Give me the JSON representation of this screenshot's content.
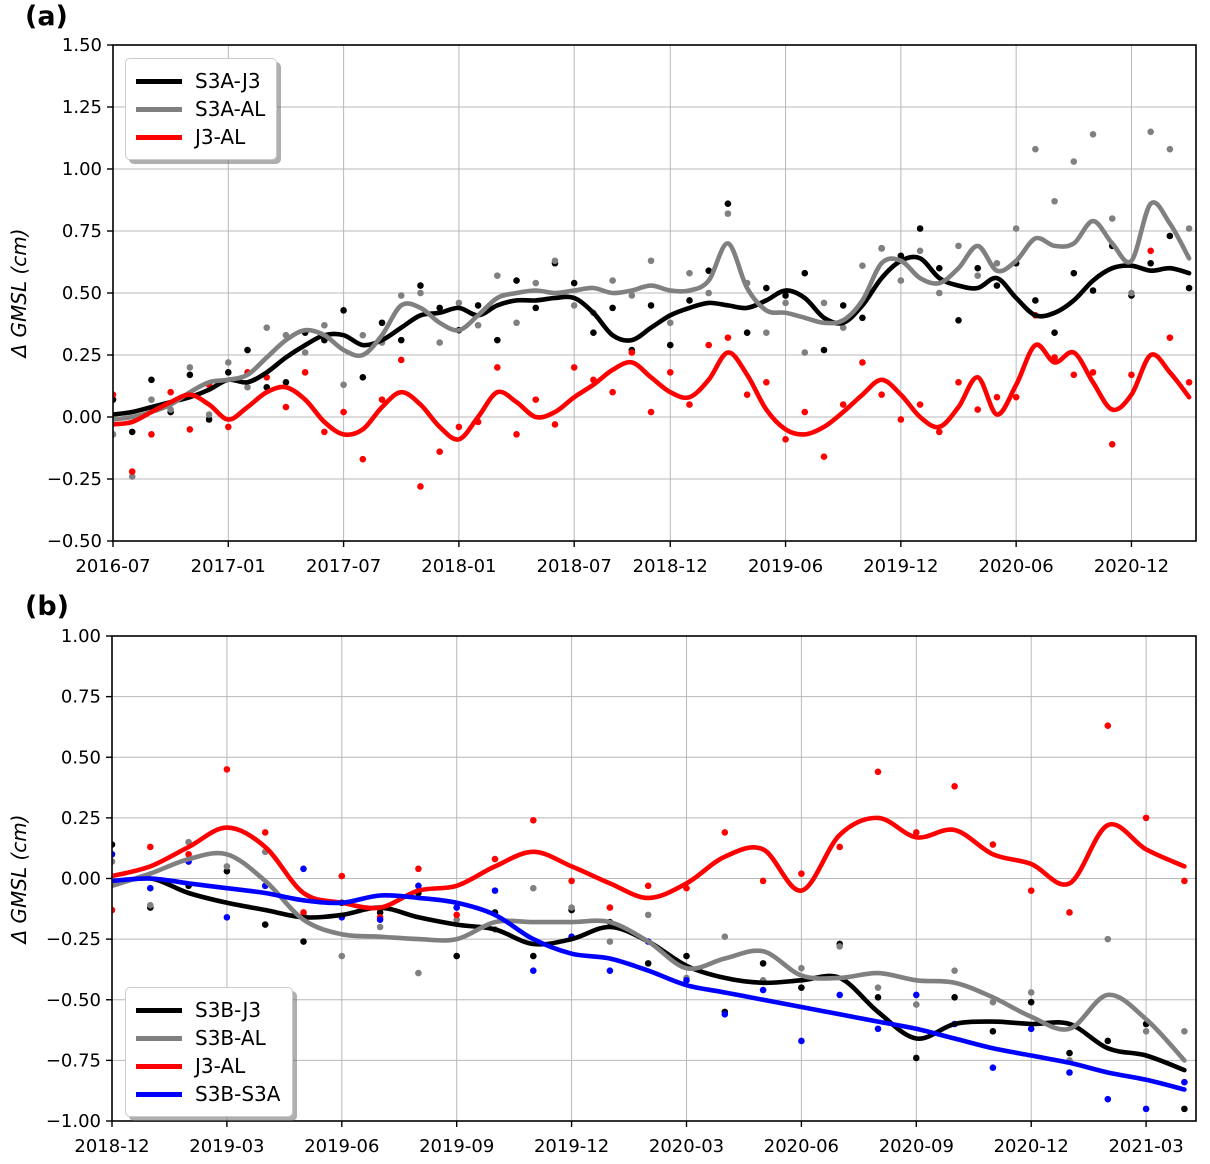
{
  "figure": {
    "panels": [
      {
        "label": "(a)",
        "ylabel": "Δ GMSL (cm)"
      },
      {
        "label": "(b)",
        "ylabel": "Δ GMSL (cm)"
      }
    ]
  },
  "chart_data": [
    {
      "type": "line",
      "panel": "a",
      "title": "(a)",
      "ylabel": "Δ GMSL (cm)",
      "ylim": [
        -0.5,
        1.5
      ],
      "grid": true,
      "legend_position": "upper-left",
      "y_tick_values": [
        1.5,
        1.25,
        1.0,
        0.75,
        0.5,
        0.25,
        0.0,
        -0.25,
        -0.5
      ],
      "y_tick_labels": [
        "1.50",
        "1.25",
        "1.00",
        "0.75",
        "0.50",
        "0.25",
        "0.00",
        "−0.25",
        "−0.50"
      ],
      "x_start": "2016-07",
      "x_tick_labels": [
        "2016-07",
        "2017-01",
        "2017-07",
        "2018-01",
        "2018-07",
        "2018-12",
        "2019-06",
        "2019-12",
        "2020-06",
        "2020-12"
      ],
      "x_monthly_from": "2016-07",
      "x_monthly_to": "2021-03",
      "series": [
        {
          "name": "S3A-J3",
          "color": "#000000",
          "line": [
            0.01,
            0.02,
            0.04,
            0.06,
            0.08,
            0.11,
            0.15,
            0.14,
            0.18,
            0.24,
            0.29,
            0.33,
            0.33,
            0.29,
            0.31,
            0.36,
            0.41,
            0.42,
            0.44,
            0.41,
            0.45,
            0.47,
            0.47,
            0.48,
            0.48,
            0.42,
            0.33,
            0.31,
            0.36,
            0.41,
            0.44,
            0.46,
            0.45,
            0.44,
            0.47,
            0.51,
            0.48,
            0.4,
            0.38,
            0.45,
            0.56,
            0.63,
            0.64,
            0.56,
            0.53,
            0.52,
            0.56,
            0.48,
            0.41,
            0.42,
            0.47,
            0.55,
            0.6,
            0.61,
            0.59,
            0.6,
            0.58
          ],
          "scatter": [
            0.07,
            -0.06,
            0.15,
            0.02,
            0.17,
            -0.01,
            0.18,
            0.27,
            0.12,
            0.14,
            0.34,
            0.31,
            0.43,
            0.16,
            0.38,
            0.31,
            0.53,
            0.44,
            0.35,
            0.45,
            0.31,
            0.55,
            0.44,
            0.62,
            0.54,
            0.34,
            0.44,
            0.27,
            0.45,
            0.29,
            0.47,
            0.59,
            0.86,
            0.34,
            0.52,
            0.49,
            0.58,
            0.27,
            0.45,
            0.4,
            0.68,
            0.65,
            0.76,
            0.6,
            0.39,
            0.6,
            0.53,
            0.62,
            0.47,
            0.34,
            0.58,
            0.51,
            0.69,
            0.49,
            0.62,
            0.73,
            0.52
          ]
        },
        {
          "name": "S3A-AL",
          "color": "#808080",
          "line": [
            -0.01,
            0.0,
            0.02,
            0.05,
            0.1,
            0.14,
            0.15,
            0.17,
            0.24,
            0.31,
            0.35,
            0.33,
            0.27,
            0.25,
            0.33,
            0.45,
            0.44,
            0.38,
            0.35,
            0.41,
            0.48,
            0.5,
            0.51,
            0.5,
            0.51,
            0.52,
            0.5,
            0.51,
            0.53,
            0.51,
            0.51,
            0.55,
            0.7,
            0.52,
            0.43,
            0.42,
            0.4,
            0.38,
            0.39,
            0.47,
            0.62,
            0.63,
            0.56,
            0.54,
            0.6,
            0.69,
            0.59,
            0.63,
            0.72,
            0.69,
            0.7,
            0.79,
            0.7,
            0.63,
            0.86,
            0.78,
            0.64
          ],
          "scatter": [
            -0.07,
            -0.24,
            0.07,
            0.03,
            0.2,
            0.01,
            0.22,
            0.12,
            0.36,
            0.33,
            0.26,
            0.37,
            0.13,
            0.33,
            0.3,
            0.49,
            0.5,
            0.3,
            0.46,
            0.37,
            0.57,
            0.38,
            0.54,
            0.63,
            0.45,
            0.42,
            0.55,
            0.49,
            0.63,
            0.38,
            0.58,
            0.5,
            0.82,
            0.54,
            0.34,
            0.46,
            0.26,
            0.46,
            0.36,
            0.61,
            0.68,
            0.55,
            0.67,
            0.5,
            0.69,
            0.57,
            0.62,
            0.76,
            1.08,
            0.87,
            1.03,
            1.14,
            0.8,
            0.5,
            1.15,
            1.08,
            0.76
          ]
        },
        {
          "name": "J3-AL",
          "color": "#ff0000",
          "line": [
            -0.03,
            -0.02,
            0.02,
            0.06,
            0.09,
            0.05,
            -0.01,
            0.04,
            0.1,
            0.12,
            0.07,
            -0.02,
            -0.07,
            -0.05,
            0.04,
            0.1,
            0.05,
            -0.04,
            -0.09,
            0.0,
            0.1,
            0.06,
            0.0,
            0.02,
            0.08,
            0.13,
            0.19,
            0.22,
            0.16,
            0.1,
            0.08,
            0.15,
            0.26,
            0.17,
            0.03,
            -0.05,
            -0.07,
            -0.04,
            0.02,
            0.09,
            0.15,
            0.09,
            0.0,
            -0.04,
            0.04,
            0.16,
            0.01,
            0.13,
            0.29,
            0.22,
            0.26,
            0.14,
            0.03,
            0.09,
            0.25,
            0.18,
            0.08
          ],
          "scatter": [
            0.09,
            -0.22,
            -0.07,
            0.1,
            -0.05,
            0.13,
            -0.04,
            0.18,
            0.16,
            0.04,
            0.18,
            -0.06,
            0.02,
            -0.17,
            0.07,
            0.23,
            -0.28,
            -0.14,
            -0.04,
            -0.02,
            0.2,
            -0.07,
            0.07,
            -0.03,
            0.2,
            0.15,
            0.1,
            0.26,
            0.02,
            0.18,
            0.05,
            0.29,
            0.32,
            0.09,
            0.14,
            -0.09,
            0.02,
            -0.16,
            0.05,
            0.22,
            0.09,
            -0.01,
            0.05,
            -0.06,
            0.14,
            0.03,
            0.08,
            0.08,
            0.41,
            0.24,
            0.17,
            0.18,
            -0.11,
            0.17,
            0.67,
            0.32,
            0.14
          ]
        }
      ]
    },
    {
      "type": "line",
      "panel": "b",
      "title": "(b)",
      "ylabel": "Δ GMSL (cm)",
      "ylim": [
        -1.0,
        1.0
      ],
      "grid": true,
      "legend_position": "lower-left",
      "y_tick_values": [
        1.0,
        0.75,
        0.5,
        0.25,
        0.0,
        -0.25,
        -0.5,
        -0.75,
        -1.0
      ],
      "y_tick_labels": [
        "1.00",
        "0.75",
        "0.50",
        "0.25",
        "0.00",
        "−0.25",
        "−0.50",
        "−0.75",
        "−1.00"
      ],
      "x_start": "2018-12",
      "x_tick_labels": [
        "2018-12",
        "2019-03",
        "2019-06",
        "2019-09",
        "2019-12",
        "2020-03",
        "2020-06",
        "2020-09",
        "2020-12",
        "2021-03"
      ],
      "x_monthly_from": "2018-12",
      "x_monthly_to": "2021-04",
      "series": [
        {
          "name": "S3B-J3",
          "color": "#000000",
          "line": [
            -0.02,
            0.0,
            -0.06,
            -0.1,
            -0.13,
            -0.16,
            -0.15,
            -0.12,
            -0.16,
            -0.19,
            -0.21,
            -0.27,
            -0.25,
            -0.2,
            -0.26,
            -0.36,
            -0.41,
            -0.43,
            -0.42,
            -0.41,
            -0.55,
            -0.66,
            -0.6,
            -0.59,
            -0.6,
            -0.6,
            -0.7,
            -0.73,
            -0.79
          ],
          "scatter": [
            0.14,
            -0.12,
            -0.03,
            0.03,
            -0.19,
            -0.26,
            -0.1,
            -0.14,
            -0.06,
            -0.32,
            -0.14,
            -0.32,
            -0.13,
            -0.18,
            -0.35,
            -0.32,
            -0.55,
            -0.35,
            -0.45,
            -0.27,
            -0.49,
            -0.74,
            -0.49,
            -0.63,
            -0.51,
            -0.72,
            -0.67,
            -0.6,
            -0.95
          ]
        },
        {
          "name": "S3B-AL",
          "color": "#808080",
          "line": [
            -0.03,
            0.02,
            0.08,
            0.1,
            -0.01,
            -0.17,
            -0.23,
            -0.24,
            -0.25,
            -0.25,
            -0.18,
            -0.18,
            -0.18,
            -0.18,
            -0.26,
            -0.37,
            -0.33,
            -0.3,
            -0.4,
            -0.41,
            -0.39,
            -0.42,
            -0.43,
            -0.49,
            -0.57,
            -0.62,
            -0.48,
            -0.58,
            -0.75
          ],
          "scatter": [
            0.07,
            -0.11,
            0.15,
            0.05,
            0.11,
            -0.15,
            -0.32,
            -0.2,
            -0.39,
            -0.17,
            -0.21,
            -0.04,
            -0.12,
            -0.26,
            -0.15,
            -0.41,
            -0.24,
            -0.42,
            -0.37,
            -0.28,
            -0.45,
            -0.52,
            -0.38,
            -0.51,
            -0.47,
            -0.75,
            -0.25,
            -0.63,
            -0.63
          ]
        },
        {
          "name": "J3-AL",
          "color": "#ff0000",
          "line": [
            0.01,
            0.05,
            0.13,
            0.21,
            0.13,
            -0.06,
            -0.1,
            -0.12,
            -0.05,
            -0.03,
            0.05,
            0.11,
            0.05,
            -0.02,
            -0.08,
            -0.02,
            0.09,
            0.12,
            -0.05,
            0.18,
            0.25,
            0.17,
            0.2,
            0.1,
            0.06,
            -0.02,
            0.22,
            0.12,
            0.05
          ],
          "scatter": [
            -0.13,
            0.13,
            0.1,
            0.45,
            0.19,
            -0.14,
            0.01,
            -0.16,
            0.04,
            -0.15,
            0.08,
            0.24,
            -0.01,
            -0.12,
            -0.03,
            -0.04,
            0.19,
            -0.01,
            0.02,
            0.13,
            0.44,
            0.19,
            0.38,
            0.14,
            -0.05,
            -0.14,
            0.63,
            0.25,
            -0.01
          ]
        },
        {
          "name": "S3B-S3A",
          "color": "#0000ff",
          "line": [
            -0.01,
            0.0,
            -0.02,
            -0.04,
            -0.06,
            -0.09,
            -0.1,
            -0.07,
            -0.08,
            -0.1,
            -0.15,
            -0.25,
            -0.31,
            -0.33,
            -0.38,
            -0.44,
            -0.47,
            -0.5,
            -0.53,
            -0.56,
            -0.59,
            -0.62,
            -0.66,
            -0.7,
            -0.73,
            -0.76,
            -0.8,
            -0.83,
            -0.87
          ],
          "scatter": [
            0.1,
            -0.04,
            0.07,
            -0.16,
            -0.03,
            0.04,
            -0.16,
            -0.17,
            -0.03,
            -0.12,
            -0.05,
            -0.38,
            -0.24,
            -0.38,
            -0.26,
            -0.42,
            -0.56,
            -0.46,
            -0.67,
            -0.48,
            -0.62,
            -0.48,
            -0.6,
            -0.78,
            -0.62,
            -0.8,
            -0.91,
            -0.95,
            -0.84
          ]
        }
      ]
    }
  ]
}
